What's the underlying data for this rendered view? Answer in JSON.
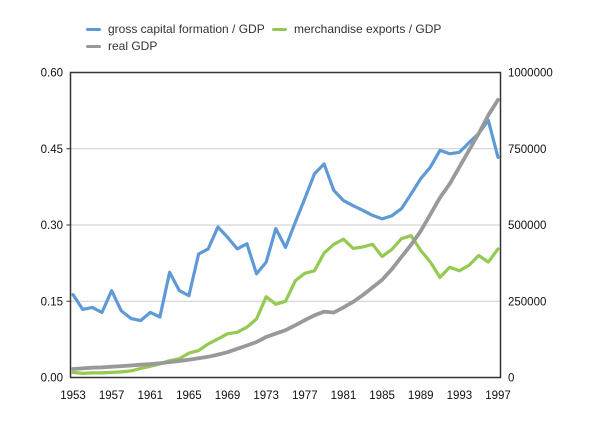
{
  "legend": {
    "items": [
      {
        "label": "gross capital formation / GDP",
        "color": "#5f9ad6"
      },
      {
        "label": "merchandise exports / GDP",
        "color": "#94ca52"
      },
      {
        "label": "real GDP",
        "color": "#999999"
      }
    ]
  },
  "chart_data": {
    "type": "line",
    "title": "",
    "xlabel": "",
    "ylabel_left": "",
    "ylabel_right": "",
    "grid": true,
    "legend_position": "top",
    "x": [
      1953,
      1954,
      1955,
      1956,
      1957,
      1958,
      1959,
      1960,
      1961,
      1962,
      1963,
      1964,
      1965,
      1966,
      1967,
      1968,
      1969,
      1970,
      1971,
      1972,
      1973,
      1974,
      1975,
      1976,
      1977,
      1978,
      1979,
      1980,
      1981,
      1982,
      1983,
      1984,
      1985,
      1986,
      1987,
      1988,
      1989,
      1990,
      1991,
      1992,
      1993,
      1994,
      1995,
      1996,
      1997
    ],
    "x_tick_labels": [
      "1953",
      "1957",
      "1961",
      "1965",
      "1969",
      "1973",
      "1977",
      "1981",
      "1985",
      "1989",
      "1993",
      "1997"
    ],
    "left_axis": {
      "ticks": [
        "0.00",
        "0.15",
        "0.30",
        "0.45",
        "0.60"
      ],
      "range": [
        0,
        0.6
      ]
    },
    "right_axis": {
      "ticks": [
        "0",
        "250000",
        "500000",
        "750000",
        "1000000"
      ],
      "range": [
        0,
        1000000
      ]
    },
    "series": [
      {
        "name": "gross capital formation / GDP",
        "axis": "left",
        "color": "#5f9ad6",
        "values": [
          0.163,
          0.134,
          0.138,
          0.128,
          0.171,
          0.131,
          0.116,
          0.112,
          0.128,
          0.119,
          0.207,
          0.171,
          0.161,
          0.243,
          0.253,
          0.296,
          0.276,
          0.253,
          0.263,
          0.204,
          0.227,
          0.293,
          0.256,
          0.305,
          0.352,
          0.401,
          0.42,
          0.368,
          0.348,
          0.338,
          0.329,
          0.319,
          0.312,
          0.318,
          0.332,
          0.361,
          0.391,
          0.414,
          0.447,
          0.44,
          0.443,
          0.462,
          0.48,
          0.506,
          0.433
        ]
      },
      {
        "name": "merchandise exports / GDP",
        "axis": "left",
        "color": "#94ca52",
        "values": [
          0.01,
          0.008,
          0.009,
          0.009,
          0.01,
          0.011,
          0.013,
          0.018,
          0.022,
          0.027,
          0.033,
          0.037,
          0.048,
          0.053,
          0.066,
          0.076,
          0.086,
          0.089,
          0.099,
          0.115,
          0.159,
          0.144,
          0.15,
          0.19,
          0.205,
          0.21,
          0.245,
          0.262,
          0.272,
          0.254,
          0.257,
          0.262,
          0.238,
          0.252,
          0.273,
          0.279,
          0.25,
          0.227,
          0.197,
          0.217,
          0.21,
          0.221,
          0.24,
          0.227,
          0.253
        ]
      },
      {
        "name": "real GDP",
        "axis": "right",
        "color": "#999999",
        "values": [
          28000,
          30000,
          32000,
          33000,
          35500,
          37500,
          39500,
          42000,
          44000,
          46500,
          50500,
          54000,
          58000,
          63000,
          68000,
          75000,
          83000,
          94000,
          105000,
          116000,
          133000,
          144000,
          155000,
          171000,
          188000,
          204000,
          216000,
          213000,
          230000,
          248000,
          270000,
          295000,
          320000,
          355000,
          395000,
          435000,
          480000,
          535000,
          590000,
          635000,
          690000,
          745000,
          800000,
          860000,
          910000
        ]
      }
    ]
  }
}
